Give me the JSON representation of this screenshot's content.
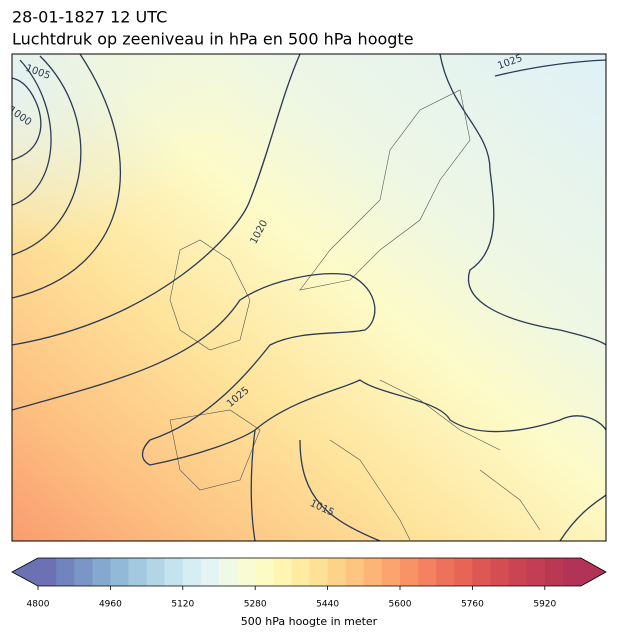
{
  "header": {
    "title": "28-01-1827 12 UTC",
    "subtitle": "Luchtdruk op zeeniveau in hPa en 500 hPa hoogte"
  },
  "map": {
    "contour_labels": [
      "1005",
      "1000",
      "1025",
      "1020",
      "1025",
      "1015"
    ]
  },
  "colorbar": {
    "label": "500 hPa hoogte in meter",
    "lim": [
      4800,
      6000
    ],
    "ticks": [
      4800,
      4960,
      5120,
      5280,
      5440,
      5600,
      5760,
      5920
    ],
    "colors": [
      "#6b71b2",
      "#7184bd",
      "#7a96c6",
      "#84a8cf",
      "#92b9d8",
      "#a2c9e0",
      "#b3d6e7",
      "#c4e3ee",
      "#d5edf3",
      "#e4f3f3",
      "#f0f8e6",
      "#f8fbd4",
      "#fdfbc4",
      "#fff5b3",
      "#feeca3",
      "#fee196",
      "#fdd38a",
      "#fdc57f",
      "#fcb576",
      "#fba46d",
      "#f89366",
      "#f48260",
      "#ee725b",
      "#e66557",
      "#dd5854",
      "#d44d53",
      "#cb4453",
      "#c33e54",
      "#bb3855",
      "#b33356"
    ]
  }
}
